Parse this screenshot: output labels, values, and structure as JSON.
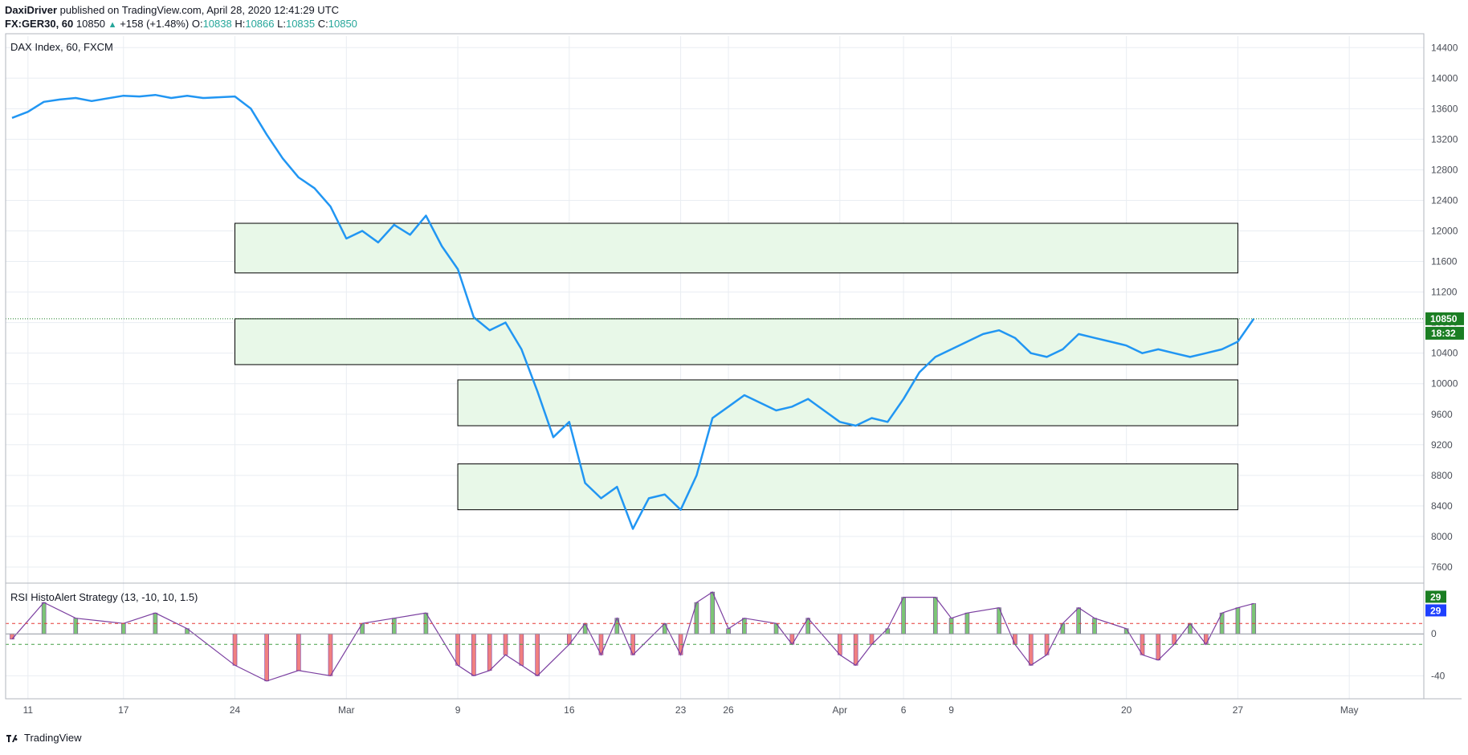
{
  "header": {
    "author": "DaxiDriver",
    "published_text": " published on TradingView.com, April 28, 2020 12:41:29 UTC",
    "symbol": "FX:GER30, 60",
    "last": "10850",
    "change": "+158 (+1.48%)",
    "o_label": "O:",
    "o_value": "10838",
    "h_label": "H:",
    "h_value": "10866",
    "l_label": "L:",
    "l_value": "10835",
    "c_label": "C:",
    "c_value": "10850"
  },
  "footer": {
    "brand": "TradingView"
  },
  "colors": {
    "line": "#2196f3",
    "zone_fill": "#e8f8e8",
    "zone_border": "#000000",
    "price_tag": "#1b7e23",
    "histo_pos": "#7cc576",
    "histo_neg": "#f08080",
    "histo_outline": "#7b3fa0",
    "ref_red": "#e53935",
    "ref_green": "#43a047",
    "grid": "#e9edf2"
  },
  "chart_data": [
    {
      "type": "line",
      "title": "DAX Index, 60, FXCM",
      "ylim": [
        7400,
        14550
      ],
      "y_ticks": [
        7600,
        8000,
        8400,
        8800,
        9200,
        9600,
        10000,
        10400,
        10800,
        11200,
        11600,
        12000,
        12400,
        12800,
        13200,
        13600,
        14000,
        14400
      ],
      "x_ticks": [
        "11",
        "17",
        "24",
        "Mar",
        "9",
        "16",
        "23",
        "26",
        "Apr",
        "6",
        "9",
        "20",
        "27",
        "May"
      ],
      "x_tick_dates": [
        "2020-02-11",
        "2020-02-17",
        "2020-02-24",
        "2020-03-02",
        "2020-03-09",
        "2020-03-16",
        "2020-03-23",
        "2020-03-26",
        "2020-04-02",
        "2020-04-06",
        "2020-04-09",
        "2020-04-20",
        "2020-04-27",
        "2020-05-04"
      ],
      "last_price": "10850",
      "countdown": "18:32",
      "series": [
        {
          "points": [
            [
              "2020-02-10",
              13480
            ],
            [
              "2020-02-11",
              13560
            ],
            [
              "2020-02-12",
              13690
            ],
            [
              "2020-02-13",
              13720
            ],
            [
              "2020-02-14",
              13740
            ],
            [
              "2020-02-15",
              13700
            ],
            [
              "2020-02-17",
              13770
            ],
            [
              "2020-02-18",
              13760
            ],
            [
              "2020-02-19",
              13780
            ],
            [
              "2020-02-20",
              13740
            ],
            [
              "2020-02-21",
              13770
            ],
            [
              "2020-02-22",
              13740
            ],
            [
              "2020-02-24",
              13760
            ],
            [
              "2020-02-25",
              13600
            ],
            [
              "2020-02-26",
              13260
            ],
            [
              "2020-02-27",
              12950
            ],
            [
              "2020-02-28",
              12700
            ],
            [
              "2020-02-29",
              12560
            ],
            [
              "2020-03-01",
              12320
            ],
            [
              "2020-03-02",
              11900
            ],
            [
              "2020-03-03",
              12000
            ],
            [
              "2020-03-04",
              11850
            ],
            [
              "2020-03-05",
              12080
            ],
            [
              "2020-03-06",
              11950
            ],
            [
              "2020-03-07",
              12200
            ],
            [
              "2020-03-08",
              11800
            ],
            [
              "2020-03-09",
              11500
            ],
            [
              "2020-03-10",
              10870
            ],
            [
              "2020-03-11",
              10700
            ],
            [
              "2020-03-12",
              10800
            ],
            [
              "2020-03-13",
              10450
            ],
            [
              "2020-03-14",
              9900
            ],
            [
              "2020-03-15",
              9300
            ],
            [
              "2020-03-16",
              9500
            ],
            [
              "2020-03-17",
              8700
            ],
            [
              "2020-03-18",
              8500
            ],
            [
              "2020-03-19",
              8650
            ],
            [
              "2020-03-20",
              8100
            ],
            [
              "2020-03-21",
              8500
            ],
            [
              "2020-03-22",
              8550
            ],
            [
              "2020-03-23",
              8350
            ],
            [
              "2020-03-24",
              8800
            ],
            [
              "2020-03-25",
              9550
            ],
            [
              "2020-03-26",
              9700
            ],
            [
              "2020-03-27",
              9850
            ],
            [
              "2020-03-28",
              9750
            ],
            [
              "2020-03-29",
              9650
            ],
            [
              "2020-03-30",
              9700
            ],
            [
              "2020-03-31",
              9800
            ],
            [
              "2020-04-01",
              9650
            ],
            [
              "2020-04-02",
              9500
            ],
            [
              "2020-04-03",
              9450
            ],
            [
              "2020-04-04",
              9550
            ],
            [
              "2020-04-05",
              9500
            ],
            [
              "2020-04-06",
              9800
            ],
            [
              "2020-04-07",
              10150
            ],
            [
              "2020-04-08",
              10350
            ],
            [
              "2020-04-09",
              10450
            ],
            [
              "2020-04-10",
              10550
            ],
            [
              "2020-04-11",
              10650
            ],
            [
              "2020-04-12",
              10700
            ],
            [
              "2020-04-13",
              10600
            ],
            [
              "2020-04-14",
              10400
            ],
            [
              "2020-04-15",
              10350
            ],
            [
              "2020-04-16",
              10450
            ],
            [
              "2020-04-17",
              10650
            ],
            [
              "2020-04-18",
              10600
            ],
            [
              "2020-04-19",
              10550
            ],
            [
              "2020-04-20",
              10500
            ],
            [
              "2020-04-21",
              10400
            ],
            [
              "2020-04-22",
              10450
            ],
            [
              "2020-04-23",
              10400
            ],
            [
              "2020-04-24",
              10350
            ],
            [
              "2020-04-25",
              10400
            ],
            [
              "2020-04-26",
              10450
            ],
            [
              "2020-04-27",
              10550
            ],
            [
              "2020-04-28",
              10850
            ]
          ]
        }
      ],
      "zones": [
        {
          "name": "zone-1",
          "from_date": "2020-02-24",
          "to_date": "2020-04-27",
          "low": 11450,
          "high": 12100
        },
        {
          "name": "zone-2",
          "from_date": "2020-02-24",
          "to_date": "2020-04-27",
          "low": 10250,
          "high": 10850
        },
        {
          "name": "zone-3",
          "from_date": "2020-03-09",
          "to_date": "2020-04-27",
          "low": 9450,
          "high": 10050
        },
        {
          "name": "zone-4",
          "from_date": "2020-03-09",
          "to_date": "2020-04-27",
          "low": 8350,
          "high": 8950
        }
      ]
    },
    {
      "type": "bar",
      "title": "RSI HistoAlert Strategy (13, -10, 10, 1.5)",
      "ylim": [
        -62,
        47
      ],
      "y_ticks": [
        -40,
        0
      ],
      "ref_lines": [
        10,
        -10
      ],
      "last_values": [
        "29",
        "29"
      ],
      "series": [
        {
          "points": [
            [
              "2020-02-10",
              -5
            ],
            [
              "2020-02-12",
              30
            ],
            [
              "2020-02-14",
              15
            ],
            [
              "2020-02-17",
              10
            ],
            [
              "2020-02-19",
              20
            ],
            [
              "2020-02-21",
              5
            ],
            [
              "2020-02-24",
              -30
            ],
            [
              "2020-02-26",
              -45
            ],
            [
              "2020-02-28",
              -35
            ],
            [
              "2020-03-01",
              -40
            ],
            [
              "2020-03-03",
              10
            ],
            [
              "2020-03-05",
              15
            ],
            [
              "2020-03-07",
              20
            ],
            [
              "2020-03-09",
              -30
            ],
            [
              "2020-03-10",
              -40
            ],
            [
              "2020-03-11",
              -35
            ],
            [
              "2020-03-12",
              -20
            ],
            [
              "2020-03-13",
              -30
            ],
            [
              "2020-03-14",
              -40
            ],
            [
              "2020-03-16",
              -10
            ],
            [
              "2020-03-17",
              10
            ],
            [
              "2020-03-18",
              -20
            ],
            [
              "2020-03-19",
              15
            ],
            [
              "2020-03-20",
              -20
            ],
            [
              "2020-03-22",
              10
            ],
            [
              "2020-03-23",
              -20
            ],
            [
              "2020-03-24",
              30
            ],
            [
              "2020-03-25",
              40
            ],
            [
              "2020-03-26",
              5
            ],
            [
              "2020-03-27",
              15
            ],
            [
              "2020-03-29",
              10
            ],
            [
              "2020-03-30",
              -10
            ],
            [
              "2020-03-31",
              15
            ],
            [
              "2020-04-02",
              -20
            ],
            [
              "2020-04-03",
              -30
            ],
            [
              "2020-04-04",
              -10
            ],
            [
              "2020-04-05",
              5
            ],
            [
              "2020-04-06",
              35
            ],
            [
              "2020-04-08",
              35
            ],
            [
              "2020-04-09",
              15
            ],
            [
              "2020-04-10",
              20
            ],
            [
              "2020-04-12",
              25
            ],
            [
              "2020-04-13",
              -10
            ],
            [
              "2020-04-14",
              -30
            ],
            [
              "2020-04-15",
              -20
            ],
            [
              "2020-04-16",
              10
            ],
            [
              "2020-04-17",
              25
            ],
            [
              "2020-04-18",
              15
            ],
            [
              "2020-04-20",
              5
            ],
            [
              "2020-04-21",
              -20
            ],
            [
              "2020-04-22",
              -25
            ],
            [
              "2020-04-23",
              -10
            ],
            [
              "2020-04-24",
              10
            ],
            [
              "2020-04-25",
              -10
            ],
            [
              "2020-04-26",
              20
            ],
            [
              "2020-04-27",
              25
            ],
            [
              "2020-04-28",
              29
            ]
          ]
        }
      ]
    }
  ]
}
